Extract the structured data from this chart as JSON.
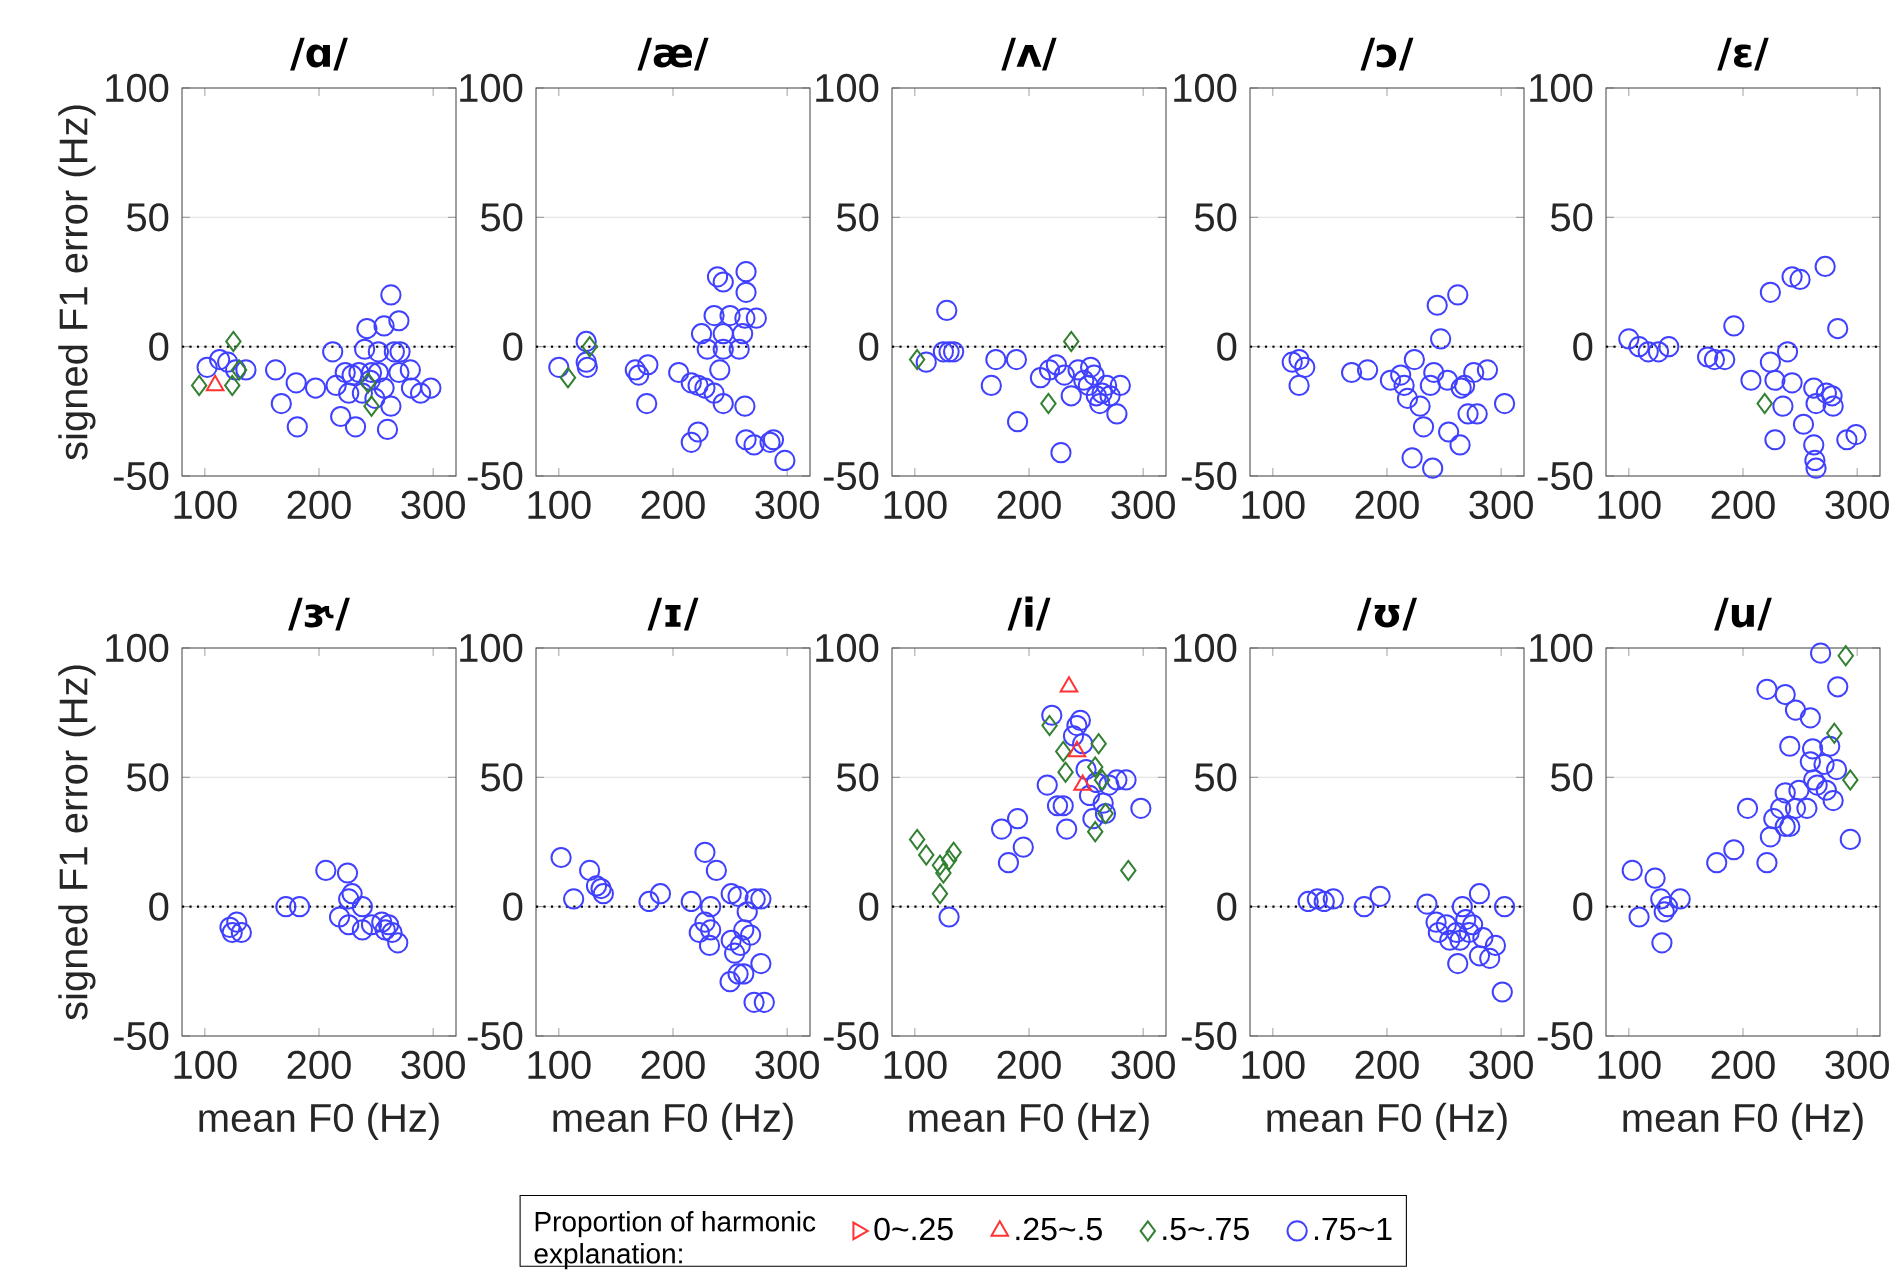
{
  "chart_data": [
    {
      "type": "scatter",
      "title": "/ɑ/",
      "ylabel": "signed F1 error (Hz)",
      "xlim": [
        80,
        320
      ],
      "xticks": [
        100,
        200,
        300
      ],
      "ylim": [
        -50,
        100
      ],
      "yticks": [
        -50,
        0,
        50,
        100
      ],
      "grid": "y",
      "ref_lines": [
        {
          "axis": "y",
          "value": 0,
          "line_style": "dotted",
          "color": "#000000"
        }
      ],
      "series": [
        {
          "color": "#ff3333",
          "marker": "triangle",
          "x": [
            109
          ],
          "values": [
            -15
          ]
        },
        {
          "color": "#338033",
          "marker": "diamond",
          "x": [
            95,
            125,
            124,
            130,
            243,
            246
          ],
          "values": [
            -15,
            2,
            -15,
            -9,
            -14,
            -23
          ]
        },
        {
          "color": "#4040ff",
          "marker": "circle",
          "x": [
            102,
            113,
            120,
            127,
            136,
            162,
            167,
            180,
            181,
            197,
            212,
            215,
            219,
            226,
            232,
            235,
            242,
            240,
            245,
            249,
            257,
            263,
            270,
            260,
            263,
            270,
            271,
            280,
            281,
            289,
            298,
            229,
            223,
            238,
            252,
            257,
            266,
            252,
            246
          ],
          "values": [
            -8,
            -5,
            -6,
            -9,
            -9,
            -9,
            -22,
            -14,
            -31,
            -16,
            -2,
            -15,
            -27,
            -18,
            -31,
            -10,
            7,
            -1,
            -13,
            -20,
            8,
            20,
            10,
            -32,
            -23,
            -10,
            -2,
            -9,
            -16,
            -18,
            -16,
            -11,
            -10,
            -18,
            -10,
            -16,
            -2,
            -2,
            -10
          ]
        }
      ]
    },
    {
      "type": "scatter",
      "title": "/æ/",
      "xlim": [
        80,
        320
      ],
      "xticks": [
        100,
        200,
        300
      ],
      "ylim": [
        -50,
        100
      ],
      "yticks": [
        -50,
        0,
        50,
        100
      ],
      "grid": "y",
      "ref_lines": [
        {
          "axis": "y",
          "value": 0,
          "line_style": "dotted",
          "color": "#000000"
        }
      ],
      "series": [
        {
          "color": "#338033",
          "marker": "diamond",
          "x": [
            108,
            127
          ],
          "values": [
            -12,
            0
          ]
        },
        {
          "color": "#4040ff",
          "marker": "circle",
          "x": [
            100,
            124,
            124,
            125,
            167,
            170,
            178,
            177,
            205,
            216,
            222,
            228,
            236,
            244,
            216,
            222,
            225,
            239,
            244,
            236,
            244,
            250,
            230,
            244,
            241,
            264,
            264,
            263,
            273,
            258,
            263,
            264,
            271,
            285,
            288,
            298,
            261
          ],
          "values": [
            -8,
            2,
            -6,
            -8,
            -9,
            -11,
            -7,
            -22,
            -10,
            -14,
            -15,
            -16,
            -18,
            -22,
            -37,
            -33,
            5,
            27,
            25,
            12,
            5,
            12,
            -1,
            -1,
            -9,
            29,
            21,
            11,
            11,
            -1,
            -23,
            -36,
            -38,
            -37,
            -36,
            -44,
            5
          ]
        }
      ]
    },
    {
      "type": "scatter",
      "title": "/ʌ/",
      "xlim": [
        80,
        320
      ],
      "xticks": [
        100,
        200,
        300
      ],
      "ylim": [
        -50,
        100
      ],
      "yticks": [
        -50,
        0,
        50,
        100
      ],
      "grid": "y",
      "ref_lines": [
        {
          "axis": "y",
          "value": 0,
          "line_style": "dotted",
          "color": "#000000"
        }
      ],
      "series": [
        {
          "color": "#338033",
          "marker": "diamond",
          "x": [
            102,
            217,
            237
          ],
          "values": [
            -5,
            -22,
            2
          ]
        },
        {
          "color": "#4040ff",
          "marker": "circle",
          "x": [
            110,
            128,
            125,
            130,
            134,
            171,
            167,
            189,
            190,
            210,
            218,
            224,
            228,
            231,
            237,
            243,
            248,
            252,
            257,
            259,
            262,
            268,
            271,
            277,
            280,
            264,
            254
          ],
          "values": [
            -6,
            14,
            -2,
            -2,
            -2,
            -5,
            -15,
            -5,
            -29,
            -12,
            -9,
            -7,
            -41,
            -11,
            -19,
            -9,
            -13,
            -15,
            -11,
            -19,
            -22,
            -15,
            -19,
            -26,
            -15,
            -18,
            -8
          ]
        }
      ]
    },
    {
      "type": "scatter",
      "title": "/ɔ/",
      "xlim": [
        80,
        320
      ],
      "xticks": [
        100,
        200,
        300
      ],
      "ylim": [
        -50,
        100
      ],
      "yticks": [
        -50,
        0,
        50,
        100
      ],
      "grid": "y",
      "ref_lines": [
        {
          "axis": "y",
          "value": 0,
          "line_style": "dotted",
          "color": "#000000"
        }
      ],
      "series": [
        {
          "color": "#4040ff",
          "marker": "circle",
          "x": [
            117,
            123,
            123,
            128,
            169,
            183,
            203,
            215,
            218,
            224,
            229,
            232,
            238,
            241,
            244,
            247,
            253,
            254,
            262,
            265,
            264,
            268,
            271,
            276,
            279,
            288,
            303,
            222,
            240,
            212
          ],
          "values": [
            -6,
            -5,
            -15,
            -8,
            -10,
            -9,
            -13,
            -15,
            -20,
            -5,
            -23,
            -31,
            -15,
            -10,
            16,
            3,
            -13,
            -33,
            20,
            -16,
            -38,
            -15,
            -26,
            -10,
            -26,
            -9,
            -22,
            -43,
            -47,
            -11
          ]
        }
      ]
    },
    {
      "type": "scatter",
      "title": "/ɛ/",
      "xlim": [
        80,
        320
      ],
      "xticks": [
        100,
        200,
        300
      ],
      "ylim": [
        -50,
        100
      ],
      "yticks": [
        -50,
        0,
        50,
        100
      ],
      "grid": "y",
      "ref_lines": [
        {
          "axis": "y",
          "value": 0,
          "line_style": "dotted",
          "color": "#000000"
        }
      ],
      "series": [
        {
          "color": "#338033",
          "marker": "diamond",
          "x": [
            219
          ],
          "values": [
            -22
          ]
        },
        {
          "color": "#4040ff",
          "marker": "circle",
          "x": [
            100,
            109,
            117,
            126,
            135,
            169,
            175,
            184,
            192,
            207,
            224,
            224,
            228,
            235,
            239,
            243,
            250,
            243,
            253,
            262,
            264,
            262,
            263,
            264,
            272,
            273,
            279,
            283,
            291,
            299,
            228,
            278
          ],
          "values": [
            3,
            0,
            -2,
            -2,
            0,
            -4,
            -5,
            -5,
            8,
            -13,
            21,
            -6,
            -13,
            -23,
            -2,
            27,
            26,
            -14,
            -30,
            -16,
            -22,
            -38,
            -44,
            -47,
            31,
            -18,
            -23,
            7,
            -36,
            -34,
            -36,
            -19
          ]
        }
      ]
    },
    {
      "type": "scatter",
      "title": "/ɝ/",
      "xlabel": "mean F0 (Hz)",
      "ylabel": "signed F1 error (Hz)",
      "xlim": [
        80,
        320
      ],
      "xticks": [
        100,
        200,
        300
      ],
      "ylim": [
        -50,
        100
      ],
      "yticks": [
        -50,
        0,
        50,
        100
      ],
      "grid": "y",
      "ref_lines": [
        {
          "axis": "y",
          "value": 0,
          "line_style": "dotted",
          "color": "#000000"
        }
      ],
      "series": [
        {
          "color": "#4040ff",
          "marker": "circle",
          "x": [
            122,
            124,
            128,
            132,
            171,
            183,
            206,
            225,
            226,
            229,
            218,
            226,
            238,
            238,
            246,
            255,
            258,
            261,
            264,
            269
          ],
          "values": [
            -8,
            -10,
            -6,
            -10,
            0,
            0,
            14,
            13,
            3,
            5,
            -4,
            -7,
            0,
            -9,
            -7,
            -6,
            -9,
            -7,
            -10,
            -14
          ]
        }
      ]
    },
    {
      "type": "scatter",
      "title": "/ɪ/",
      "xlabel": "mean F0 (Hz)",
      "xlim": [
        80,
        320
      ],
      "xticks": [
        100,
        200,
        300
      ],
      "ylim": [
        -50,
        100
      ],
      "yticks": [
        -50,
        0,
        50,
        100
      ],
      "grid": "y",
      "ref_lines": [
        {
          "axis": "y",
          "value": 0,
          "line_style": "dotted",
          "color": "#000000"
        }
      ],
      "series": [
        {
          "color": "#4040ff",
          "marker": "circle",
          "x": [
            102,
            113,
            127,
            133,
            137,
            139,
            179,
            189,
            216,
            228,
            223,
            228,
            232,
            238,
            233,
            233,
            251,
            251,
            250,
            257,
            262,
            271,
            272,
            254,
            257,
            265,
            262,
            268,
            259,
            277,
            277,
            280
          ],
          "values": [
            19,
            3,
            14,
            8,
            7,
            5,
            2,
            5,
            2,
            21,
            -10,
            -6,
            -15,
            14,
            0,
            -9,
            5,
            -13,
            -29,
            -26,
            -26,
            -37,
            3,
            -18,
            4,
            -2,
            -9,
            -11,
            -15,
            3,
            -22,
            -37
          ]
        }
      ]
    },
    {
      "type": "scatter",
      "title": "/i/",
      "xlabel": "mean F0 (Hz)",
      "xlim": [
        80,
        320
      ],
      "xticks": [
        100,
        200,
        300
      ],
      "ylim": [
        -50,
        100
      ],
      "yticks": [
        -50,
        0,
        50,
        100
      ],
      "grid": "y",
      "legend": "bottom",
      "legend_title": "Proportion of harmonic explanation:",
      "ref_lines": [
        {
          "axis": "y",
          "value": 0,
          "line_style": "dotted",
          "color": "#000000"
        }
      ],
      "series": [
        {
          "name": "0~.25",
          "color": "#ff3333",
          "marker": "triangle-right"
        },
        {
          "name": ".25~.5",
          "color": "#ff3333",
          "marker": "triangle",
          "x": [
            235,
            242,
            247
          ],
          "values": [
            85,
            60,
            47
          ]
        },
        {
          "name": ".5~.75",
          "color": "#338033",
          "marker": "diamond",
          "x": [
            102,
            110,
            122,
            130,
            134,
            122,
            125,
            218,
            230,
            232,
            261,
            258,
            264,
            258,
            267,
            287
          ],
          "values": [
            26,
            20,
            16,
            18,
            21,
            5,
            13,
            70,
            60,
            52,
            63,
            54,
            49,
            29,
            36,
            14
          ]
        },
        {
          "name": ".75~1",
          "color": "#4040ff",
          "marker": "circle",
          "x": [
            130,
            176,
            190,
            182,
            195,
            216,
            220,
            225,
            230,
            233,
            239,
            242,
            245,
            250,
            253,
            259,
            265,
            267,
            270,
            277,
            285,
            298,
            256,
            247
          ],
          "values": [
            -4,
            30,
            34,
            17,
            23,
            47,
            74,
            39,
            39,
            30,
            66,
            70,
            72,
            53,
            43,
            48,
            40,
            36,
            47,
            49,
            49,
            38,
            34,
            63
          ]
        }
      ]
    },
    {
      "type": "scatter",
      "title": "/ʊ/",
      "xlabel": "mean F0 (Hz)",
      "xlim": [
        80,
        320
      ],
      "xticks": [
        100,
        200,
        300
      ],
      "ylim": [
        -50,
        100
      ],
      "yticks": [
        -50,
        0,
        50,
        100
      ],
      "grid": "y",
      "ref_lines": [
        {
          "axis": "y",
          "value": 0,
          "line_style": "dotted",
          "color": "#000000"
        }
      ],
      "series": [
        {
          "color": "#4040ff",
          "marker": "circle",
          "x": [
            131,
            139,
            145,
            153,
            180,
            194,
            235,
            243,
            245,
            252,
            255,
            261,
            262,
            266,
            269,
            275,
            281,
            284,
            281,
            290,
            295,
            303,
            301,
            272,
            264
          ],
          "values": [
            2,
            3,
            2,
            3,
            0,
            4,
            1,
            -6,
            -10,
            -7,
            -13,
            -10,
            -22,
            0,
            -5,
            -7,
            5,
            -12,
            -19,
            -20,
            -15,
            0,
            -33,
            -10,
            -13
          ]
        }
      ]
    },
    {
      "type": "scatter",
      "title": "/u/",
      "xlabel": "mean F0 (Hz)",
      "xlim": [
        80,
        320
      ],
      "xticks": [
        100,
        200,
        300
      ],
      "ylim": [
        -50,
        100
      ],
      "yticks": [
        -50,
        0,
        50,
        100
      ],
      "grid": "y",
      "ref_lines": [
        {
          "axis": "y",
          "value": 0,
          "line_style": "dotted",
          "color": "#000000"
        }
      ],
      "series": [
        {
          "color": "#338033",
          "marker": "diamond",
          "x": [
            290,
            280,
            294
          ],
          "values": [
            97,
            67,
            49
          ]
        },
        {
          "color": "#4040ff",
          "marker": "circle",
          "x": [
            103,
            109,
            123,
            128,
            131,
            129,
            134,
            145,
            177,
            192,
            204,
            221,
            221,
            237,
            246,
            259,
            224,
            227,
            233,
            237,
            241,
            246,
            249,
            237,
            241,
            256,
            259,
            261,
            268,
            271,
            273,
            276,
            279,
            283,
            282,
            294,
            262,
            265
          ],
          "values": [
            14,
            -4,
            11,
            3,
            -2,
            -14,
            0,
            3,
            17,
            22,
            38,
            17,
            84,
            82,
            76,
            73,
            27,
            34,
            38,
            44,
            62,
            38,
            45,
            31,
            31,
            38,
            56,
            61,
            98,
            55,
            45,
            62,
            41,
            85,
            53,
            26,
            49,
            47
          ]
        }
      ]
    }
  ]
}
